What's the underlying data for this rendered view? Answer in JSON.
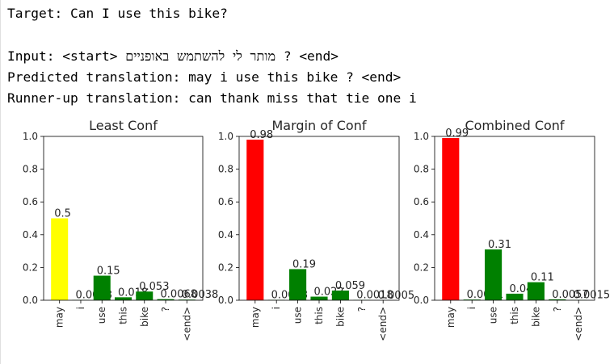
{
  "output": {
    "target": "Target: Can I use this bike?",
    "input": "Input: <start> מותר לי להשתמש באופניים ? <end>",
    "predicted": "Predicted translation: may i use this bike ? <end>",
    "runner_up": "Runner-up translation: can thank miss that tie one i"
  },
  "chart_data": [
    {
      "type": "bar",
      "title": "Least Conf",
      "categories": [
        "may",
        "i",
        "use",
        "this",
        "bike",
        "?",
        "<end>"
      ],
      "values": [
        0.5,
        0.0018,
        0.15,
        0.018,
        0.053,
        0.0068,
        0.0038
      ],
      "value_labels": [
        "0.5",
        "0.0018",
        "0.15",
        "0.018",
        "0.053",
        "0.0068",
        "0.0038"
      ],
      "colors": [
        "#ffff00",
        "#008000",
        "#008000",
        "#008000",
        "#008000",
        "#008000",
        "#008000"
      ],
      "ylim": [
        0,
        1.0
      ],
      "yticks": [
        "0.0",
        "0.2",
        "0.4",
        "0.6",
        "0.8",
        "1.0"
      ]
    },
    {
      "type": "bar",
      "title": "Margin of Conf",
      "categories": [
        "may",
        "i",
        "use",
        "this",
        "bike",
        "?",
        "<end>"
      ],
      "values": [
        0.98,
        0.0023,
        0.19,
        0.022,
        0.059,
        0.0018,
        0.0005
      ],
      "value_labels": [
        "0.98",
        "0.0023",
        "0.19",
        "0.022",
        "0.059",
        "0.0018",
        "0.0005"
      ],
      "colors": [
        "#ff0000",
        "#008000",
        "#008000",
        "#008000",
        "#008000",
        "#008000",
        "#008000"
      ],
      "ylim": [
        0,
        1.0
      ],
      "yticks": [
        "0.0",
        "0.2",
        "0.4",
        "0.6",
        "0.8",
        "1.0"
      ]
    },
    {
      "type": "bar",
      "title": "Combined Conf",
      "categories": [
        "may",
        "i",
        "use",
        "this",
        "bike",
        "?",
        "<end>"
      ],
      "values": [
        0.99,
        0.0041,
        0.31,
        0.04,
        0.11,
        0.0057,
        0.0015
      ],
      "value_labels": [
        "0.99",
        "0.0041",
        "0.31",
        "0.04",
        "0.11",
        "0.0057",
        "0.0015"
      ],
      "colors": [
        "#ff0000",
        "#008000",
        "#008000",
        "#008000",
        "#008000",
        "#008000",
        "#008000"
      ],
      "ylim": [
        0,
        1.0
      ],
      "yticks": [
        "0.0",
        "0.2",
        "0.4",
        "0.6",
        "0.8",
        "1.0"
      ]
    }
  ]
}
